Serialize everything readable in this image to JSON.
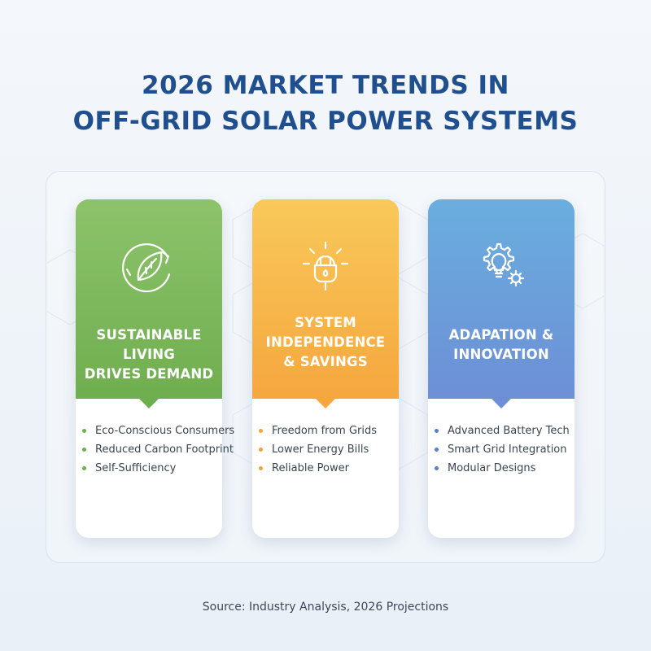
{
  "title": {
    "line1": "2026 MARKET TRENDS IN",
    "line2": "OFF-GRID SOLAR POWER SYSTEMS"
  },
  "cards": [
    {
      "heading": "SUSTAINABLE LIVING\nDRIVES DEMAND",
      "icon": "leaf-cycle-icon",
      "color_top": "#8dc36b",
      "color_bottom": "#6fae4f",
      "bullet_color": "#6fae4f",
      "items": [
        "Eco-Conscious Consumers",
        "Reduced Carbon Footprint",
        "Self-Sufficiency"
      ]
    },
    {
      "heading": "SYSTEM\nINDEPENDENCE\n& SAVINGS",
      "icon": "lightbulb-plug-icon",
      "color_top": "#f9c85a",
      "color_bottom": "#f5a73e",
      "bullet_color": "#f3a33a",
      "items": [
        "Freedom from Grids",
        "Lower Energy Bills",
        "Reliable Power"
      ]
    },
    {
      "heading": "ADAPATION &\nINNOVATION",
      "icon": "lightbulb-gear-icon",
      "color_top": "#6aaede",
      "color_bottom": "#6d8fd6",
      "bullet_color": "#5b7fc7",
      "items": [
        "Advanced Battery Tech",
        "Smart Grid Integration",
        "Modular Designs"
      ]
    }
  ],
  "source": "Source: Industry Analysis, 2026 Projections"
}
